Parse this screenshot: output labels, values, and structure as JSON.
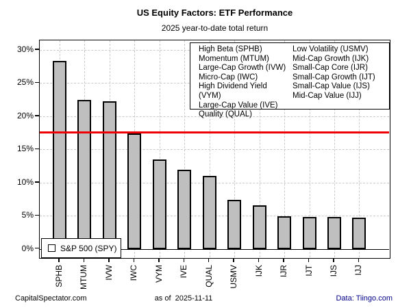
{
  "title": "US Equity Factors: ETF Performance",
  "subtitle": "2025 year-to-date total return",
  "chart_data": {
    "type": "bar",
    "categories": [
      "SPHB",
      "MTUM",
      "IVW",
      "IWC",
      "VYM",
      "IVE",
      "QUAL",
      "USMV",
      "IJK",
      "IJR",
      "IJT",
      "IJS",
      "IJJ"
    ],
    "values": [
      28.4,
      22.5,
      22.3,
      17.4,
      13.5,
      11.9,
      11.0,
      7.4,
      6.6,
      4.9,
      4.8,
      4.8,
      4.7
    ],
    "ylabel_format": "percent",
    "yticks": [
      0,
      5,
      10,
      15,
      20,
      25,
      30
    ],
    "ylim": [
      0,
      31
    ],
    "grid": "dashed-both-axes",
    "bar_fill": "#bfbfbf",
    "bar_border": "#000000",
    "reference_line": {
      "label": "S&P 500 (SPY)",
      "value": 17.6,
      "color": "#ee0000"
    }
  },
  "legend": {
    "col1": [
      "High Beta (SPHB)",
      "Momentum (MTUM)",
      "Large-Cap Growth (IVW)",
      "Micro-Cap (IWC)",
      "High Dividend Yield (VYM)",
      "Large-Cap Value (IVE)",
      "Quality (QUAL)"
    ],
    "col2": [
      "Low Volatility (USMV)",
      "Mid-Cap Growth (IJK)",
      "Small-Cap Core (IJR)",
      "Small-Cap Growth (IJT)",
      "Small-Cap Value (IJS)",
      "Mid-Cap Value (IJJ)"
    ]
  },
  "spy_legend": {
    "label": "S&P 500 (SPY)",
    "swatch_color": "#ee0000"
  },
  "footer": {
    "left": "CapitalSpectator.com",
    "center": "as of  2025-11-11",
    "right": "Data: Tiingo.com",
    "right_color": "#00008b"
  }
}
